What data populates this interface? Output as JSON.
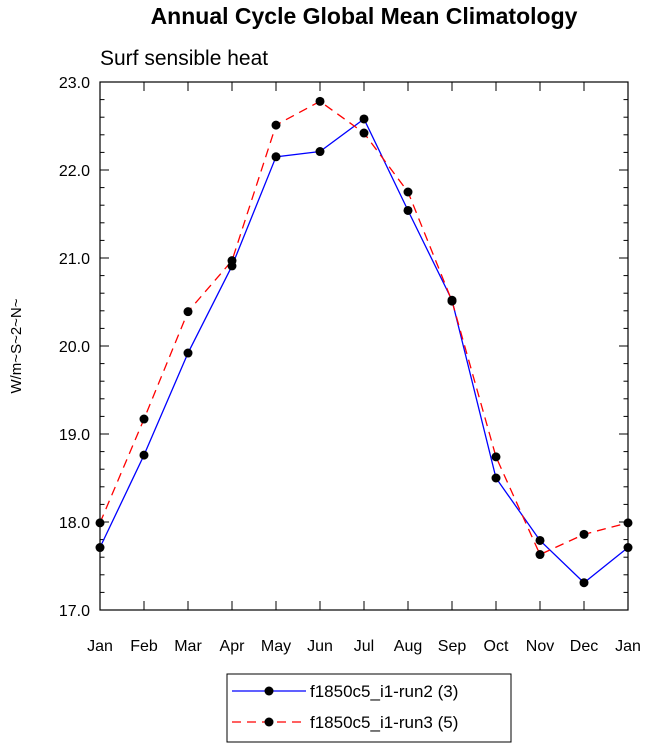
{
  "chart_data": {
    "type": "line",
    "title": "Annual Cycle Global Mean Climatology",
    "subtitle": "Surf sensible heat",
    "xlabel": "",
    "ylabel": "W/m~S~2~N~",
    "categories": [
      "Jan",
      "Feb",
      "Mar",
      "Apr",
      "May",
      "Jun",
      "Jul",
      "Aug",
      "Sep",
      "Oct",
      "Nov",
      "Dec",
      "Jan"
    ],
    "ylim": [
      17.0,
      23.0
    ],
    "yticks": [
      "17.0",
      "18.0",
      "19.0",
      "20.0",
      "21.0",
      "22.0",
      "23.0"
    ],
    "grid": false,
    "legend_position": "bottom-center",
    "series": [
      {
        "name": "f1850c5_i1-run2 (3)",
        "color": "#0000ff",
        "dash": "solid",
        "values": [
          17.71,
          18.76,
          19.92,
          20.91,
          22.15,
          22.21,
          22.58,
          21.54,
          20.52,
          18.5,
          17.79,
          17.31,
          17.71
        ]
      },
      {
        "name": "f1850c5_i1-run3 (5)",
        "color": "#ff0000",
        "dash": "dashed",
        "values": [
          17.99,
          19.17,
          20.39,
          20.97,
          22.51,
          22.78,
          22.42,
          21.75,
          20.51,
          18.74,
          17.63,
          17.86,
          17.99
        ]
      }
    ]
  },
  "legend": {
    "items": [
      {
        "label": "f1850c5_i1-run2 (3)"
      },
      {
        "label": "f1850c5_i1-run3 (5)"
      }
    ]
  }
}
